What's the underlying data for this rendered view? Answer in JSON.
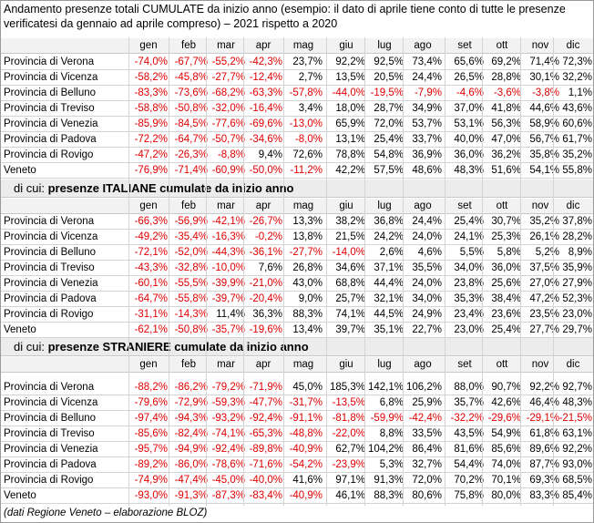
{
  "title": "Andamento presenze totali CUMULATE da inizio anno (esempio: il dato di aprile tiene conto di tutte le presenze verificatesi da gennaio ad aprile compreso) – 2021 rispetto a 2020",
  "months": [
    "gen",
    "feb",
    "mar",
    "apr",
    "mag",
    "giu",
    "lug",
    "ago",
    "set",
    "ott",
    "nov",
    "dic"
  ],
  "blocks": [
    {
      "section_prefix": "",
      "section_title": "",
      "rows": [
        {
          "name": "Provincia di Verona",
          "values": [
            "-74,0%",
            "-67,7%",
            "-55,2%",
            "-42,3%",
            "23,7%",
            "92,2%",
            "92,5%",
            "73,4%",
            "65,6%",
            "69,2%",
            "71,4%",
            "72,3%"
          ]
        },
        {
          "name": "Provincia di Vicenza",
          "values": [
            "-58,2%",
            "-45,8%",
            "-27,7%",
            "-12,4%",
            "2,7%",
            "13,5%",
            "20,5%",
            "24,4%",
            "26,5%",
            "28,8%",
            "30,1%",
            "32,2%"
          ]
        },
        {
          "name": "Provincia di Belluno",
          "values": [
            "-83,3%",
            "-73,6%",
            "-68,2%",
            "-63,3%",
            "-57,8%",
            "-44,0%",
            "-19,5%",
            "-7,9%",
            "-4,6%",
            "-3,6%",
            "-3,8%",
            "1,1%"
          ]
        },
        {
          "name": "Provincia di Treviso",
          "values": [
            "-58,8%",
            "-50,8%",
            "-32,0%",
            "-16,4%",
            "3,4%",
            "18,0%",
            "28,7%",
            "34,9%",
            "37,0%",
            "41,8%",
            "44,6%",
            "43,6%"
          ]
        },
        {
          "name": "Provincia di Venezia",
          "values": [
            "-85,9%",
            "-84,5%",
            "-77,6%",
            "-69,6%",
            "-13,0%",
            "65,9%",
            "72,0%",
            "53,7%",
            "53,1%",
            "56,3%",
            "58,9%",
            "60,6%"
          ]
        },
        {
          "name": "Provincia di Padova",
          "values": [
            "-72,2%",
            "-64,7%",
            "-50,7%",
            "-34,6%",
            "-8,0%",
            "13,1%",
            "25,4%",
            "33,7%",
            "40,0%",
            "47,0%",
            "56,7%",
            "61,7%"
          ]
        },
        {
          "name": "Provincia di Rovigo",
          "values": [
            "-47,2%",
            "-26,3%",
            "-8,8%",
            "9,4%",
            "72,6%",
            "78,8%",
            "54,8%",
            "36,9%",
            "36,0%",
            "36,2%",
            "35,8%",
            "35,2%"
          ]
        },
        {
          "name": "Veneto",
          "values": [
            "-76,9%",
            "-71,4%",
            "-60,9%",
            "-50,0%",
            "-11,2%",
            "42,2%",
            "57,5%",
            "48,6%",
            "48,3%",
            "51,6%",
            "54,1%",
            "55,8%"
          ]
        }
      ]
    },
    {
      "section_prefix": "di cui: ",
      "section_title": "presenze ITALIANE cumulate da inizio anno",
      "rows": [
        {
          "name": "Provincia di Verona",
          "values": [
            "-66,3%",
            "-56,9%",
            "-42,1%",
            "-26,7%",
            "13,3%",
            "38,2%",
            "36,8%",
            "24,4%",
            "25,4%",
            "30,7%",
            "35,2%",
            "37,8%"
          ]
        },
        {
          "name": "Provincia di Vicenza",
          "values": [
            "-49,2%",
            "-35,4%",
            "-16,3%",
            "-0,2%",
            "13,8%",
            "21,5%",
            "24,2%",
            "24,0%",
            "24,1%",
            "25,3%",
            "26,1%",
            "28,2%"
          ]
        },
        {
          "name": "Provincia di Belluno",
          "values": [
            "-72,1%",
            "-52,0%",
            "-44,3%",
            "-36,1%",
            "-27,7%",
            "-14,0%",
            "2,6%",
            "4,6%",
            "5,5%",
            "5,8%",
            "5,2%",
            "8,9%"
          ]
        },
        {
          "name": "Provincia di Treviso",
          "values": [
            "-43,3%",
            "-32,8%",
            "-10,0%",
            "7,6%",
            "26,8%",
            "34,6%",
            "37,1%",
            "35,5%",
            "34,0%",
            "36,0%",
            "37,5%",
            "35,9%"
          ]
        },
        {
          "name": "Provincia di Venezia",
          "values": [
            "-60,1%",
            "-55,5%",
            "-39,9%",
            "-21,0%",
            "43,0%",
            "68,8%",
            "44,4%",
            "24,0%",
            "23,8%",
            "25,6%",
            "27,0%",
            "27,9%"
          ]
        },
        {
          "name": "Provincia di Padova",
          "values": [
            "-64,7%",
            "-55,8%",
            "-39,7%",
            "-20,4%",
            "9,0%",
            "25,7%",
            "32,1%",
            "34,0%",
            "35,3%",
            "38,4%",
            "47,2%",
            "52,3%"
          ]
        },
        {
          "name": "Provincia di Rovigo",
          "values": [
            "-31,1%",
            "-14,3%",
            "11,4%",
            "36,3%",
            "88,3%",
            "74,1%",
            "44,5%",
            "24,9%",
            "23,4%",
            "23,6%",
            "23,5%",
            "23,0%"
          ]
        },
        {
          "name": "Veneto",
          "values": [
            "-62,1%",
            "-50,8%",
            "-35,7%",
            "-19,6%",
            "13,4%",
            "39,7%",
            "35,1%",
            "22,7%",
            "23,0%",
            "25,4%",
            "27,7%",
            "29,7%"
          ]
        }
      ]
    },
    {
      "section_prefix": "di cui: ",
      "section_title": "presenze STRANIERE cumulate da inizio anno",
      "rows": [
        {
          "name": "Provincia di Verona",
          "values": [
            "-88,2%",
            "-86,2%",
            "-79,2%",
            "-71,9%",
            "45,0%",
            "185,3%",
            "142,1%",
            "106,2%",
            "88,0%",
            "90,7%",
            "92,2%",
            "92,7%"
          ]
        },
        {
          "name": "Provincia di Vicenza",
          "values": [
            "-79,6%",
            "-72,9%",
            "-59,3%",
            "-47,7%",
            "-31,7%",
            "-13,5%",
            "6,8%",
            "25,9%",
            "35,7%",
            "42,6%",
            "46,4%",
            "48,3%"
          ]
        },
        {
          "name": "Provincia di Belluno",
          "values": [
            "-97,4%",
            "-94,3%",
            "-93,2%",
            "-92,4%",
            "-91,1%",
            "-81,8%",
            "-59,9%",
            "-42,4%",
            "-32,2%",
            "-29,6%",
            "-29,1%",
            "-21,5%"
          ]
        },
        {
          "name": "Provincia di Treviso",
          "values": [
            "-85,6%",
            "-82,4%",
            "-74,1%",
            "-65,3%",
            "-48,8%",
            "-22,0%",
            "8,8%",
            "33,5%",
            "43,5%",
            "54,9%",
            "61,8%",
            "63,1%"
          ]
        },
        {
          "name": "Provincia di Venezia",
          "values": [
            "-95,7%",
            "-94,9%",
            "-92,4%",
            "-89,8%",
            "-40,9%",
            "62,7%",
            "104,2%",
            "86,4%",
            "81,6%",
            "85,6%",
            "89,6%",
            "92,2%"
          ]
        },
        {
          "name": "Provincia di Padova",
          "values": [
            "-89,2%",
            "-86,0%",
            "-78,6%",
            "-71,6%",
            "-54,2%",
            "-23,9%",
            "5,3%",
            "32,7%",
            "54,4%",
            "74,0%",
            "87,7%",
            "93,0%"
          ]
        },
        {
          "name": "Provincia di Rovigo",
          "values": [
            "-74,9%",
            "-47,4%",
            "-45,0%",
            "-40,0%",
            "41,6%",
            "97,1%",
            "91,3%",
            "72,0%",
            "70,2%",
            "70,1%",
            "69,3%",
            "68,5%"
          ]
        },
        {
          "name": "Veneto",
          "values": [
            "-93,0%",
            "-91,3%",
            "-87,3%",
            "-83,4%",
            "-40,9%",
            "46,1%",
            "88,3%",
            "80,6%",
            "75,8%",
            "80,0%",
            "83,3%",
            "85,4%"
          ]
        }
      ]
    }
  ],
  "footer": "(dati Regione Veneto – elaborazione BLOZ)",
  "colors": {
    "negative": "#e00000",
    "positive": "#000000"
  }
}
